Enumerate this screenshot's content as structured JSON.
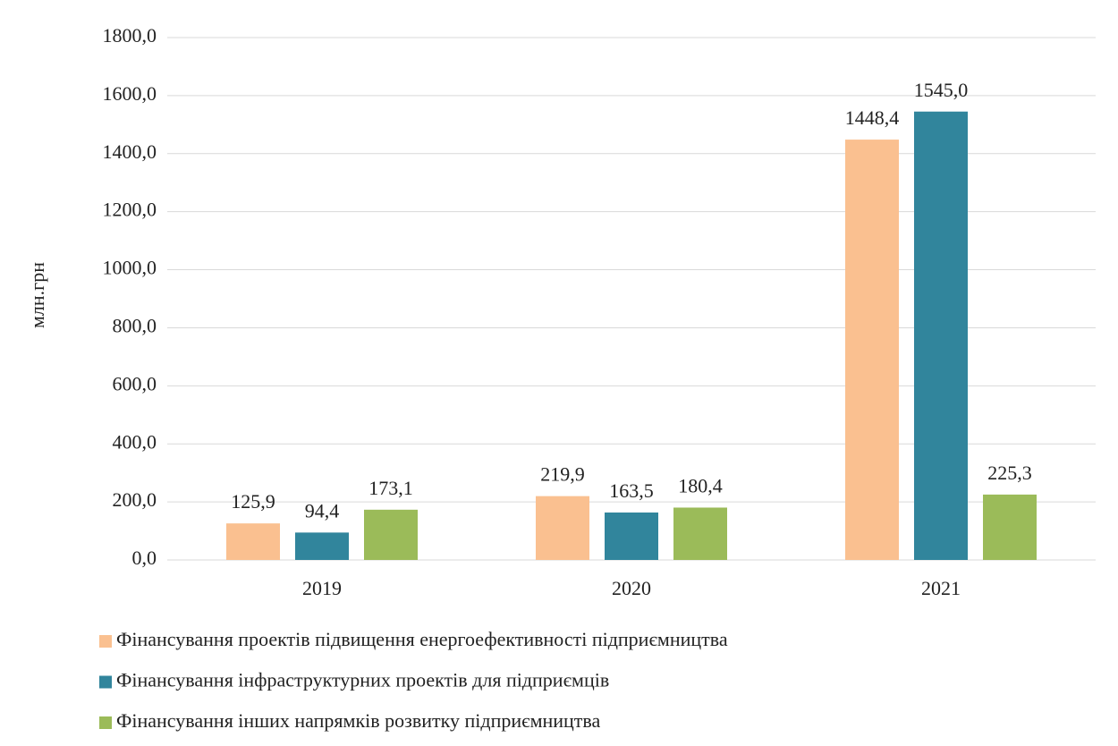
{
  "chart_data": {
    "type": "bar",
    "y_label": "млн.грн",
    "categories": [
      "2019",
      "2020",
      "2021"
    ],
    "series": [
      {
        "name": "Фінансування проектів підвищення енергоефективності підприємництва",
        "color": "#fac090",
        "values": [
          125.9,
          219.9,
          1448.4
        ],
        "value_labels": [
          "125,9",
          "219,9",
          "1448,4"
        ]
      },
      {
        "name": "Фінансування інфраструктурних проектів для підприємців",
        "color": "#31859c",
        "values": [
          94.4,
          163.5,
          1545.0
        ],
        "value_labels": [
          "94,4",
          "163,5",
          "1545,0"
        ]
      },
      {
        "name": "Фінансування інших напрямків розвитку підприємництва",
        "color": "#9bbb59",
        "values": [
          173.1,
          180.4,
          225.3
        ],
        "value_labels": [
          "173,1",
          "180,4",
          "225,3"
        ]
      }
    ],
    "ylim": [
      0,
      1800
    ],
    "yticks": [
      {
        "value": 0,
        "label": "0,0"
      },
      {
        "value": 200,
        "label": "200,0"
      },
      {
        "value": 400,
        "label": "400,0"
      },
      {
        "value": 600,
        "label": "600,0"
      },
      {
        "value": 800,
        "label": "800,0"
      },
      {
        "value": 1000,
        "label": "1000,0"
      },
      {
        "value": 1200,
        "label": "1200,0"
      },
      {
        "value": 1400,
        "label": "1400,0"
      },
      {
        "value": 1600,
        "label": "1600,0"
      },
      {
        "value": 1800,
        "label": "1800,0"
      }
    ],
    "grid": true,
    "legend": "bottom"
  }
}
